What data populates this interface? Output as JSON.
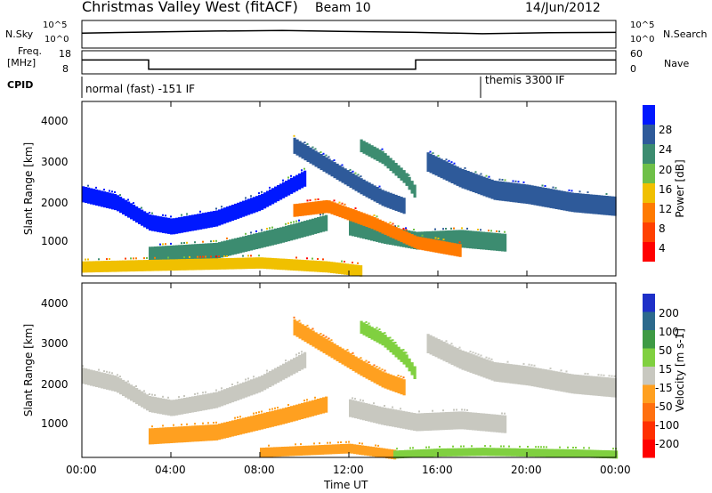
{
  "header": {
    "station": "Christmas Valley West (fitACF)",
    "beam": "Beam 10",
    "date": "14/Jun/2012"
  },
  "top_panels": {
    "nsky_label": "N.Sky",
    "nsky_ticks": [
      "10^5",
      "10^0"
    ],
    "nsearch_label": "N.Search",
    "freq_label_1": "Freq.",
    "freq_label_2": "[MHz]",
    "freq_ticks": [
      "18",
      "8"
    ],
    "nave_label": "Nave",
    "nave_ticks": [
      "60",
      "0"
    ],
    "cpid_label": "CPID",
    "cpid_1": "normal (fast) -151 IF",
    "cpid_2": "themis 3300 IF"
  },
  "power_panel": {
    "ylabel": "Slant Range [km]",
    "yticks": [
      "4000",
      "3000",
      "2000",
      "1000"
    ],
    "colorbar_label": "Power [dB]",
    "colorbar_ticks": [
      "28",
      "24",
      "20",
      "16",
      "12",
      "8",
      "4"
    ],
    "colors": [
      "#0018ff",
      "#2e5a9a",
      "#3c8c70",
      "#6fc048",
      "#f0c000",
      "#ff7a00",
      "#ff4000",
      "#ff0000"
    ]
  },
  "velocity_panel": {
    "ylabel": "Slant Range [km]",
    "yticks": [
      "4000",
      "3000",
      "2000",
      "1000"
    ],
    "colorbar_label": "Velocity [m s-1]",
    "colorbar_ticks": [
      "200",
      "100",
      "50",
      "15",
      "-15",
      "-50",
      "-100",
      "-200"
    ],
    "colors": [
      "#1e30c8",
      "#2c6a8c",
      "#3e9a44",
      "#80d040",
      "#c8c8c0",
      "#ffa020",
      "#ff7010",
      "#ff3000",
      "#ff0000"
    ]
  },
  "xaxis": {
    "ticks": [
      "00:00",
      "04:00",
      "08:00",
      "12:00",
      "16:00",
      "20:00",
      "00:00"
    ],
    "label": "Time UT"
  },
  "chart_data": [
    {
      "type": "line",
      "title": "N.Sky",
      "x": [
        0,
        3,
        6,
        9,
        12,
        15,
        18,
        21,
        24
      ],
      "series": [
        {
          "values": [
            500,
            800,
            1200,
            1500,
            1000,
            700,
            400,
            600,
            700
          ]
        }
      ],
      "ylim": [
        1,
        100000
      ],
      "log_y": true
    },
    {
      "type": "line",
      "title": "Freq. [MHz]",
      "x": [
        0,
        3,
        3,
        15,
        15,
        24
      ],
      "series": [
        {
          "values": [
            14,
            14,
            10,
            10,
            14,
            14
          ]
        }
      ],
      "ylim": [
        8,
        18
      ]
    },
    {
      "type": "heatmap",
      "title": "Power [dB]",
      "xlabel": "Time UT",
      "ylabel": "Slant Range [km]",
      "xlim": [
        0,
        24
      ],
      "ylim": [
        180,
        4500
      ],
      "zlim": [
        0,
        30
      ],
      "bands": [
        {
          "t": [
            0,
            1.5,
            3,
            4,
            6,
            8,
            9,
            10
          ],
          "r": [
            2200,
            2000,
            1500,
            1400,
            1600,
            2000,
            2300,
            2600
          ],
          "w": 200,
          "value": 28
        },
        {
          "t": [
            9.5,
            11,
            12.5,
            13.5,
            14.5
          ],
          "r": [
            3400,
            2900,
            2400,
            2100,
            1900
          ],
          "w": 200,
          "value": 24
        },
        {
          "t": [
            12.5,
            13.5,
            14.5,
            15
          ],
          "r": [
            3400,
            3100,
            2600,
            2200
          ],
          "w": 160,
          "value": 22
        },
        {
          "t": [
            15.5,
            17,
            18.5,
            20,
            22,
            24
          ],
          "r": [
            3000,
            2600,
            2300,
            2200,
            2000,
            1900
          ],
          "w": 240,
          "value": 26
        },
        {
          "t": [
            3,
            6,
            9,
            11
          ],
          "r": [
            700,
            800,
            1200,
            1500
          ],
          "w": 200,
          "value": 20
        },
        {
          "t": [
            12,
            13.5,
            15,
            17,
            19
          ],
          "r": [
            1400,
            1200,
            1050,
            1100,
            1000
          ],
          "w": 220,
          "value": 20
        },
        {
          "t": [
            0,
            4,
            8,
            11,
            12.5
          ],
          "r": [
            400,
            450,
            500,
            400,
            300
          ],
          "w": 140,
          "value": 12
        },
        {
          "t": [
            9.5,
            11,
            13,
            15,
            17
          ],
          "r": [
            1800,
            1900,
            1500,
            1000,
            800
          ],
          "w": 160,
          "value": 8
        }
      ]
    },
    {
      "type": "heatmap",
      "title": "Velocity [m s-1]",
      "xlabel": "Time UT",
      "ylabel": "Slant Range [km]",
      "xlim": [
        0,
        24
      ],
      "ylim": [
        180,
        4500
      ],
      "zlim": [
        -250,
        250
      ],
      "bands": [
        {
          "t": [
            0,
            1.5,
            3,
            4,
            6,
            8,
            9,
            10
          ],
          "r": [
            2200,
            2000,
            1500,
            1400,
            1600,
            2000,
            2300,
            2600
          ],
          "w": 200,
          "value": 0
        },
        {
          "t": [
            15.5,
            17,
            18.5,
            20,
            22,
            24
          ],
          "r": [
            3000,
            2600,
            2300,
            2200,
            2000,
            1900
          ],
          "w": 240,
          "value": 0
        },
        {
          "t": [
            3,
            6,
            9,
            11
          ],
          "r": [
            700,
            800,
            1200,
            1500
          ],
          "w": 200,
          "value": -60
        },
        {
          "t": [
            12,
            13.5,
            15,
            17,
            19
          ],
          "r": [
            1400,
            1200,
            1050,
            1100,
            1000
          ],
          "w": 220,
          "value": 0
        },
        {
          "t": [
            12.5,
            13.5,
            14.5,
            15
          ],
          "r": [
            3400,
            3100,
            2600,
            2200
          ],
          "w": 160,
          "value": 40
        },
        {
          "t": [
            9.5,
            11,
            12.5,
            13.5,
            14.5
          ],
          "r": [
            3400,
            2900,
            2400,
            2100,
            1900
          ],
          "w": 200,
          "value": -80
        },
        {
          "t": [
            8,
            10,
            12,
            14
          ],
          "r": [
            300,
            350,
            400,
            250
          ],
          "w": 120,
          "value": -60
        },
        {
          "t": [
            14,
            16,
            18,
            20,
            22,
            24
          ],
          "r": [
            250,
            300,
            320,
            300,
            280,
            250
          ],
          "w": 100,
          "value": 40
        }
      ]
    }
  ]
}
